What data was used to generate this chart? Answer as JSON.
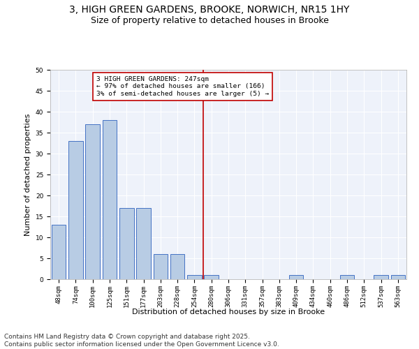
{
  "title": "3, HIGH GREEN GARDENS, BROOKE, NORWICH, NR15 1HY",
  "subtitle": "Size of property relative to detached houses in Brooke",
  "xlabel": "Distribution of detached houses by size in Brooke",
  "ylabel": "Number of detached properties",
  "categories": [
    "48sqm",
    "74sqm",
    "100sqm",
    "125sqm",
    "151sqm",
    "177sqm",
    "203sqm",
    "228sqm",
    "254sqm",
    "280sqm",
    "306sqm",
    "331sqm",
    "357sqm",
    "383sqm",
    "409sqm",
    "434sqm",
    "460sqm",
    "486sqm",
    "512sqm",
    "537sqm",
    "563sqm"
  ],
  "values": [
    13,
    33,
    37,
    38,
    17,
    17,
    6,
    6,
    1,
    1,
    0,
    0,
    0,
    0,
    1,
    0,
    0,
    1,
    0,
    1,
    1
  ],
  "bar_color": "#b8cce4",
  "bar_edge_color": "#4472c4",
  "vline_index": 8.5,
  "vline_color": "#c00000",
  "annotation_text": "3 HIGH GREEN GARDENS: 247sqm\n← 97% of detached houses are smaller (166)\n3% of semi-detached houses are larger (5) →",
  "annotation_box_color": "#ffffff",
  "annotation_box_edge": "#c00000",
  "ylim": [
    0,
    50
  ],
  "yticks": [
    0,
    5,
    10,
    15,
    20,
    25,
    30,
    35,
    40,
    45,
    50
  ],
  "background_color": "#eef2fa",
  "footer_text": "Contains HM Land Registry data © Crown copyright and database right 2025.\nContains public sector information licensed under the Open Government Licence v3.0.",
  "title_fontsize": 10,
  "subtitle_fontsize": 9,
  "axis_label_fontsize": 8,
  "tick_fontsize": 6.5,
  "footer_fontsize": 6.5
}
